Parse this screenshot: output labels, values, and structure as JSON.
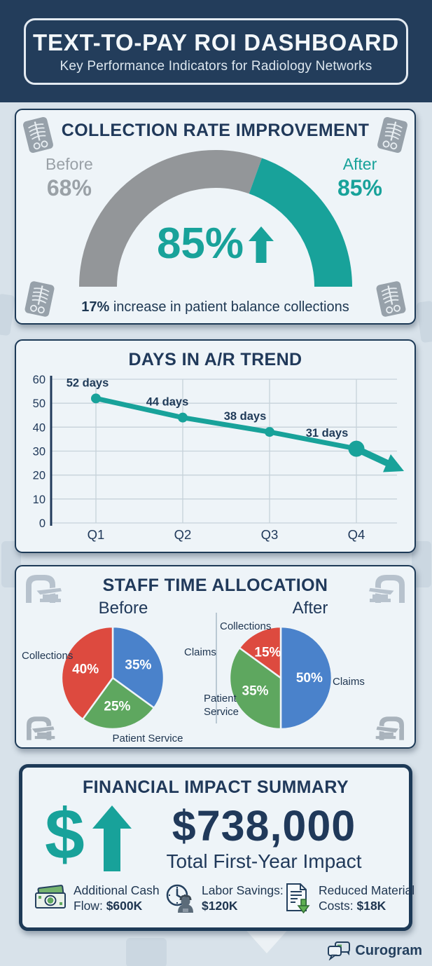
{
  "header": {
    "title": "TEXT-TO-PAY ROI DASHBOARD",
    "subtitle": "Key Performance Indicators for Radiology Networks"
  },
  "collection": {
    "title": "COLLECTION RATE IMPROVEMENT",
    "before_label": "Before",
    "before_value": "68%",
    "after_label": "After",
    "after_value": "85%",
    "center_value": "85%",
    "caption_bold": "17%",
    "caption_rest": " increase in patient balance collections"
  },
  "ar_trend": {
    "title": "DAYS IN A/R TREND"
  },
  "staff": {
    "title": "STAFF TIME ALLOCATION",
    "before_heading": "Before",
    "after_heading": "After",
    "labels": {
      "collections": "Collections",
      "claims": "Claims",
      "patient_service": "Patient Service"
    }
  },
  "financial": {
    "title": "FINANCIAL IMPACT SUMMARY",
    "dollar_symbol": "$",
    "total": "$738,000",
    "total_label": "Total First-Year Impact",
    "items": [
      {
        "icon": "cash-icon",
        "text": "Additional Cash Flow:",
        "value": "$600K"
      },
      {
        "icon": "clock-person-icon",
        "text": "Labor Savings:",
        "value": "$120K"
      },
      {
        "icon": "document-down-icon",
        "text": "Reduced Material Costs:",
        "value": "$18K"
      }
    ]
  },
  "footer": {
    "brand": "Curogram"
  },
  "colors": {
    "navy": "#20395a",
    "teal": "#18a29a",
    "gauge_gray": "#939699",
    "red": "#dd4a3f",
    "blue": "#4a82cb",
    "green": "#5ea75f",
    "card_bg": "#eef4f8",
    "page_bg": "#d8e2ea",
    "grid": "#c6d2da"
  },
  "chart_data": [
    {
      "type": "gauge",
      "title": "COLLECTION RATE IMPROVEMENT",
      "before_label": "Before",
      "before_value": 68,
      "after_label": "After",
      "after_value": 85,
      "center_label": "85%",
      "trend": "up",
      "caption": "17% increase in patient balance collections",
      "arc_split_fraction": 0.61,
      "colors": {
        "before": "#939699",
        "after": "#18a29a"
      }
    },
    {
      "type": "line",
      "title": "DAYS IN A/R TREND",
      "x": [
        "Q1",
        "Q2",
        "Q3",
        "Q4"
      ],
      "values": [
        52,
        44,
        38,
        31
      ],
      "point_label_suffix": " days",
      "ylim": [
        0,
        60
      ],
      "ytick_step": 10,
      "grid": true,
      "line_color": "#18a29a",
      "arrow_end": true
    },
    {
      "type": "pie",
      "title": "Before",
      "start_angle": 0,
      "slices": [
        {
          "label": "Claims",
          "value": 35,
          "color": "#4a82cb"
        },
        {
          "label": "Patient Service",
          "value": 25,
          "color": "#5ea75f"
        },
        {
          "label": "Collections",
          "value": 40,
          "color": "#dd4a3f"
        }
      ]
    },
    {
      "type": "pie",
      "title": "After",
      "start_angle": 0,
      "slices": [
        {
          "label": "Claims",
          "value": 50,
          "color": "#4a82cb"
        },
        {
          "label": "Patient Service",
          "value": 35,
          "color": "#5ea75f"
        },
        {
          "label": "Collections",
          "value": 15,
          "color": "#dd4a3f"
        }
      ]
    }
  ]
}
